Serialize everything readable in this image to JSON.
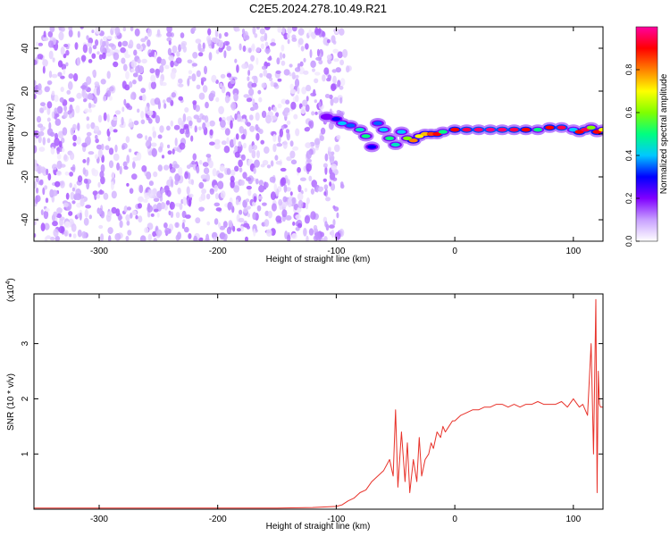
{
  "title": "C2E5.2024.278.10.49.R21",
  "chart_data": [
    {
      "type": "heatmap",
      "title": "C2E5.2024.278.10.49.R21",
      "xlabel": "Height of straight line (km)",
      "ylabel": "Frequency (Hz)",
      "xlim": [
        -355,
        125
      ],
      "ylim": [
        -50,
        50
      ],
      "xticks": [
        -300,
        -200,
        -100,
        0,
        100
      ],
      "yticks": [
        -40,
        -20,
        0,
        20,
        40
      ],
      "colorbar": {
        "label": "Normalized spectral amplitude",
        "range": [
          0,
          1
        ],
        "ticks": [
          0.0,
          0.2,
          0.4,
          0.6,
          0.8
        ],
        "tick_labels": [
          "0.0",
          "0.2",
          "0.4",
          "0.6",
          "0.8"
        ],
        "colors": [
          "#ffffff",
          "#c8a0ff",
          "#8000ff",
          "#0000ff",
          "#00c8ff",
          "#00ff80",
          "#80ff00",
          "#ffff00",
          "#ff8000",
          "#ff0000",
          "#ff00a0"
        ]
      },
      "noise_region": {
        "x": [
          -355,
          -100
        ],
        "frequency": [
          -50,
          50
        ],
        "amplitude": [
          0.02,
          0.15
        ]
      },
      "signal_track": [
        {
          "x": -108,
          "f": 8,
          "a": 0.2
        },
        {
          "x": -100,
          "f": 7,
          "a": 0.3
        },
        {
          "x": -95,
          "f": 5,
          "a": 0.4
        },
        {
          "x": -88,
          "f": 4,
          "a": 0.35
        },
        {
          "x": -80,
          "f": 2,
          "a": 0.45
        },
        {
          "x": -75,
          "f": -1,
          "a": 0.5
        },
        {
          "x": -70,
          "f": -6,
          "a": 0.3
        },
        {
          "x": -65,
          "f": 5,
          "a": 0.35
        },
        {
          "x": -60,
          "f": 2,
          "a": 0.4
        },
        {
          "x": -55,
          "f": -2,
          "a": 0.5
        },
        {
          "x": -50,
          "f": -5,
          "a": 0.45
        },
        {
          "x": -45,
          "f": 1,
          "a": 0.4
        },
        {
          "x": -40,
          "f": -2,
          "a": 0.6
        },
        {
          "x": -35,
          "f": -3,
          "a": 0.8
        },
        {
          "x": -30,
          "f": -1,
          "a": 0.7
        },
        {
          "x": -25,
          "f": 0,
          "a": 0.75
        },
        {
          "x": -20,
          "f": 0,
          "a": 0.85
        },
        {
          "x": -15,
          "f": 0,
          "a": 0.9
        },
        {
          "x": -10,
          "f": 1,
          "a": 0.5
        },
        {
          "x": 0,
          "f": 2,
          "a": 0.9
        },
        {
          "x": 10,
          "f": 2,
          "a": 0.95
        },
        {
          "x": 20,
          "f": 2,
          "a": 0.97
        },
        {
          "x": 30,
          "f": 2,
          "a": 0.98
        },
        {
          "x": 40,
          "f": 2,
          "a": 0.97
        },
        {
          "x": 50,
          "f": 2,
          "a": 0.95
        },
        {
          "x": 60,
          "f": 2,
          "a": 0.9
        },
        {
          "x": 70,
          "f": 2,
          "a": 0.5
        },
        {
          "x": 80,
          "f": 3,
          "a": 0.9
        },
        {
          "x": 90,
          "f": 3,
          "a": 0.95
        },
        {
          "x": 100,
          "f": 2,
          "a": 0.4
        },
        {
          "x": 105,
          "f": 1,
          "a": 0.9
        },
        {
          "x": 110,
          "f": 2,
          "a": 0.95
        },
        {
          "x": 115,
          "f": 3,
          "a": 0.6
        },
        {
          "x": 120,
          "f": 1,
          "a": 0.9
        },
        {
          "x": 125,
          "f": 2,
          "a": 0.7
        }
      ]
    },
    {
      "type": "line",
      "xlabel": "Height of straight line (km)",
      "ylabel": "SNR (10 * v/v)",
      "multiplier_label": "(x10",
      "multiplier_exp": "4",
      "xlim": [
        -355,
        125
      ],
      "ylim": [
        0,
        3.9
      ],
      "xticks": [
        -300,
        -200,
        -100,
        0,
        100
      ],
      "yticks": [
        1,
        2,
        3
      ],
      "color": "#e8322a",
      "series": [
        {
          "x": [
            -355,
            -300,
            -250,
            -200,
            -150,
            -120,
            -110,
            -100,
            -95,
            -90,
            -85,
            -80,
            -75,
            -70,
            -65,
            -60,
            -55,
            -52,
            -50,
            -48,
            -45,
            -42,
            -40,
            -38,
            -35,
            -32,
            -30,
            -28,
            -25,
            -22,
            -20,
            -18,
            -15,
            -12,
            -10,
            -8,
            -5,
            -2,
            0,
            5,
            10,
            15,
            20,
            25,
            30,
            35,
            40,
            45,
            50,
            55,
            60,
            65,
            70,
            75,
            80,
            85,
            90,
            95,
            100,
            105,
            108,
            112,
            115,
            117,
            119,
            120,
            121,
            122,
            123,
            125
          ],
          "values": [
            0.02,
            0.02,
            0.02,
            0.02,
            0.02,
            0.03,
            0.04,
            0.05,
            0.08,
            0.15,
            0.2,
            0.3,
            0.35,
            0.5,
            0.6,
            0.7,
            0.9,
            0.6,
            1.8,
            0.4,
            1.4,
            0.5,
            1.2,
            0.3,
            0.9,
            0.5,
            1.3,
            0.6,
            0.9,
            1.0,
            1.2,
            1.1,
            1.4,
            1.3,
            1.5,
            1.4,
            1.5,
            1.6,
            1.6,
            1.7,
            1.75,
            1.8,
            1.8,
            1.85,
            1.85,
            1.9,
            1.9,
            1.85,
            1.9,
            1.85,
            1.9,
            1.9,
            1.95,
            1.9,
            1.9,
            1.9,
            1.95,
            1.85,
            2.0,
            1.85,
            1.9,
            1.7,
            3.0,
            1.0,
            3.8,
            0.3,
            2.5,
            1.9,
            1.85,
            1.85
          ]
        }
      ]
    }
  ]
}
